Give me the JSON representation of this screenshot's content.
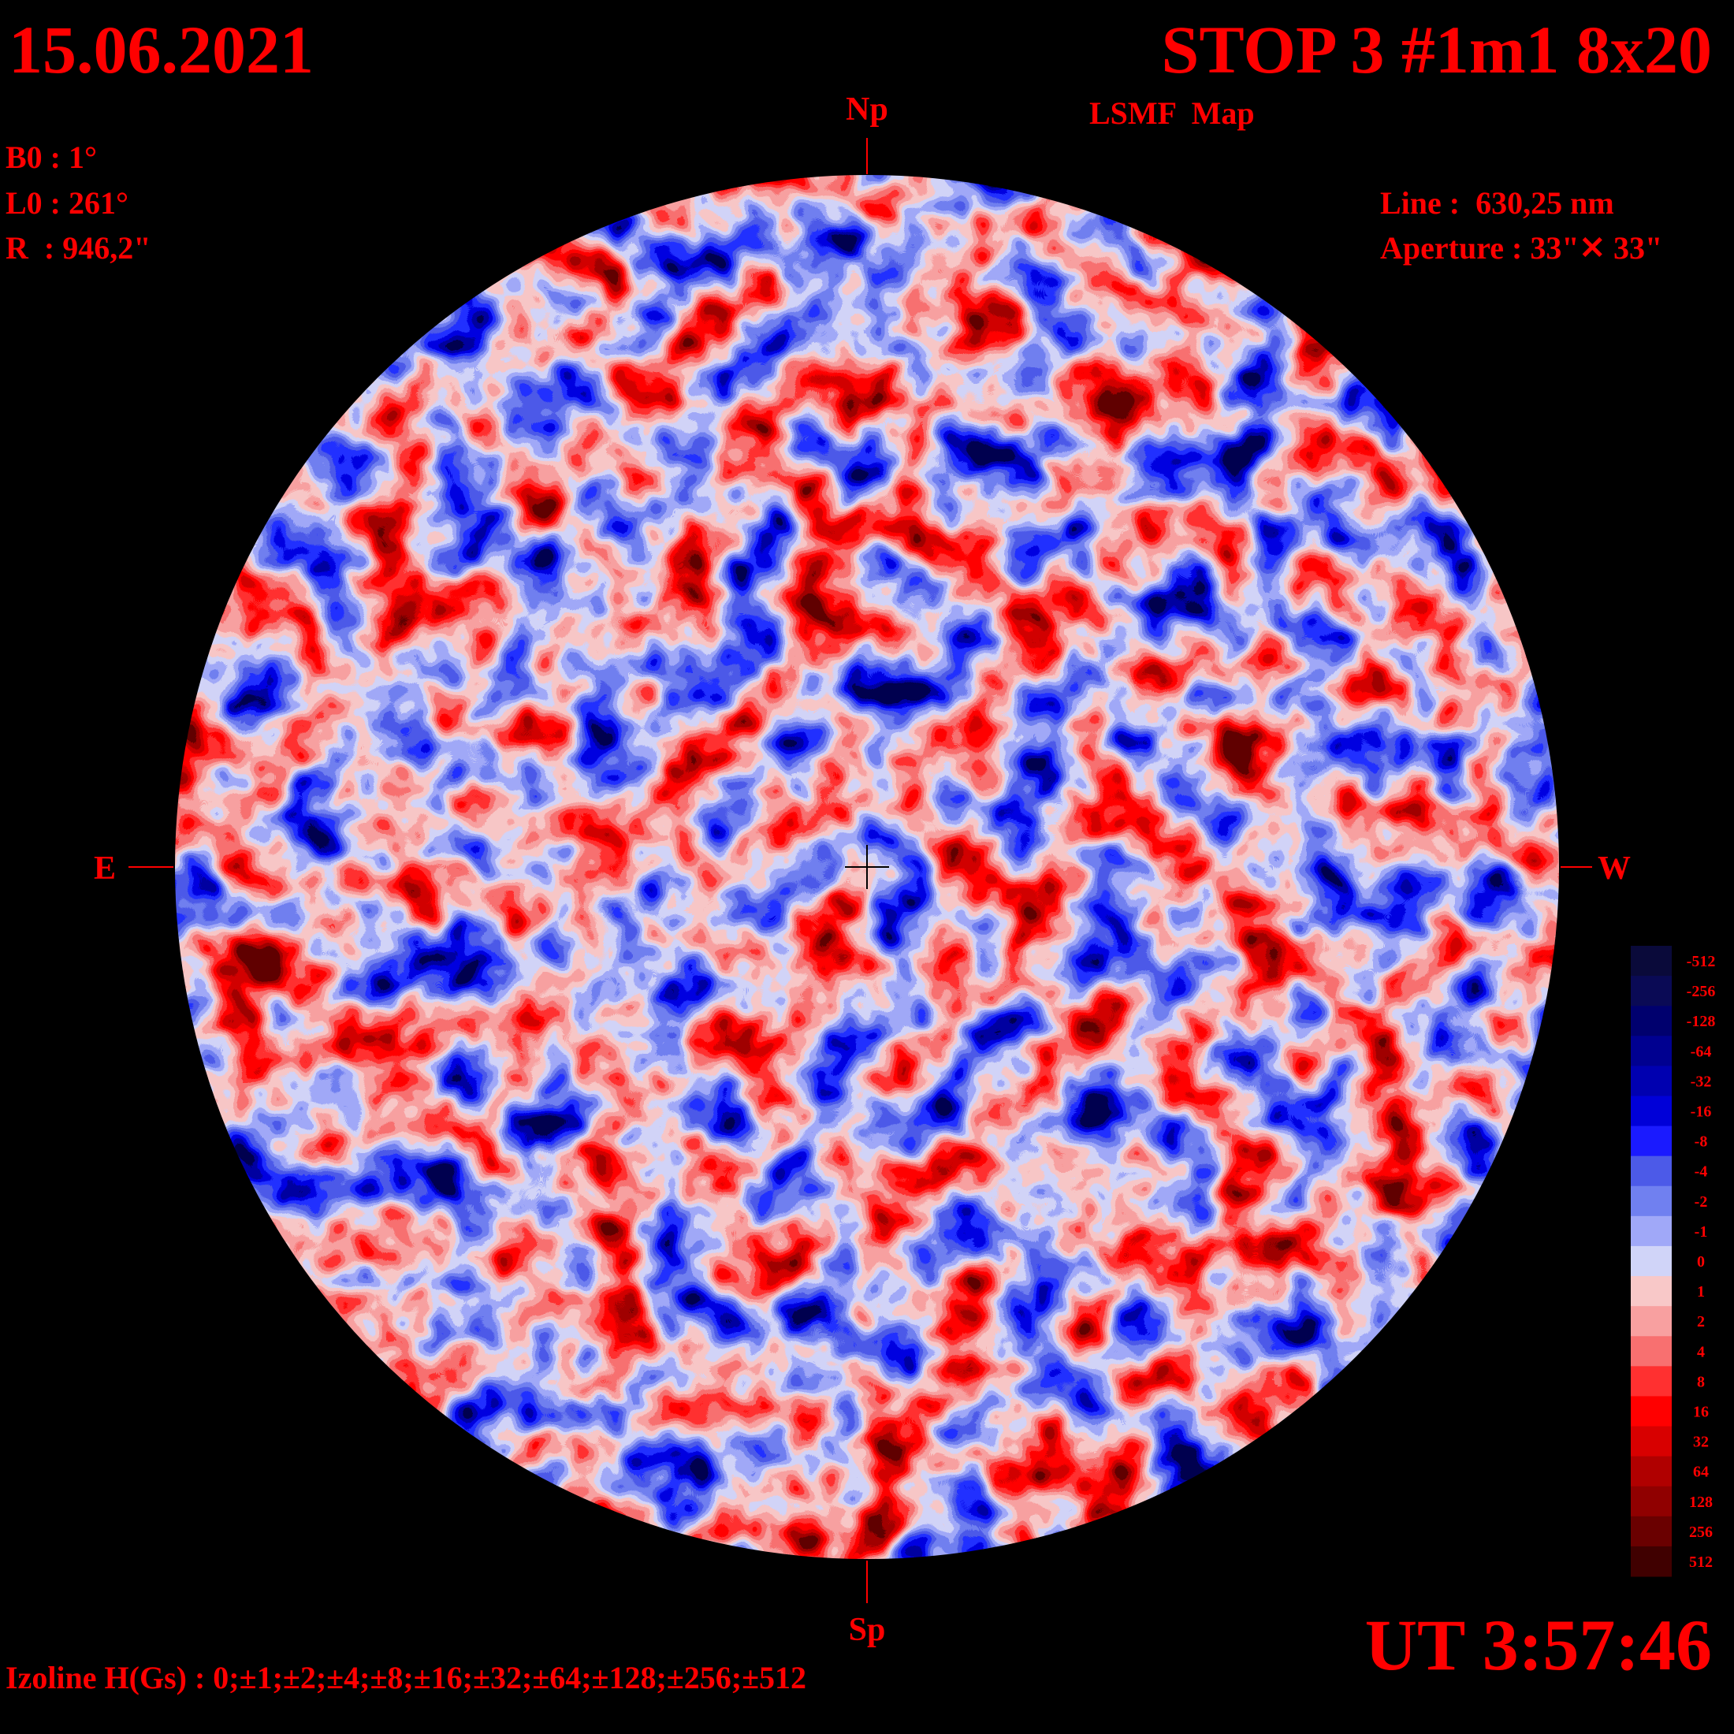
{
  "header": {
    "date": "15.06.2021",
    "title": "STOP 3 #1m1 8x20",
    "subtitle": "LSMF  Map"
  },
  "parameters": [
    "B0 : 1°",
    "L0 : 261°",
    "R  : 946,2\""
  ],
  "instrument": [
    "Line :  630,25 nm",
    "Aperture : 33\"✕ 33\""
  ],
  "directions": {
    "north": "Np",
    "south": "Sp",
    "east": "E",
    "west": "W"
  },
  "time": "UT 3:57:46",
  "isolines": "Izoline H(Gs) : 0;±1;±2;±4;±8;±16;±32;±64;±128;±256;±512",
  "colorbar": {
    "levels": [
      -512,
      -256,
      -128,
      -64,
      -32,
      -16,
      -8,
      -4,
      -2,
      -1,
      0,
      1,
      2,
      4,
      8,
      16,
      32,
      64,
      128,
      256,
      512
    ],
    "colors": [
      "#0a0a3a",
      "#0a0a55",
      "#00006e",
      "#000090",
      "#0000b0",
      "#0000d8",
      "#1a1aff",
      "#4c5ae8",
      "#7080f0",
      "#a0a8f8",
      "#d0d4f8",
      "#f8c8c8",
      "#f8a0a0",
      "#f87070",
      "#ff3030",
      "#ff0000",
      "#d80000",
      "#b00000",
      "#900000",
      "#6a0000",
      "#400000"
    ]
  }
}
